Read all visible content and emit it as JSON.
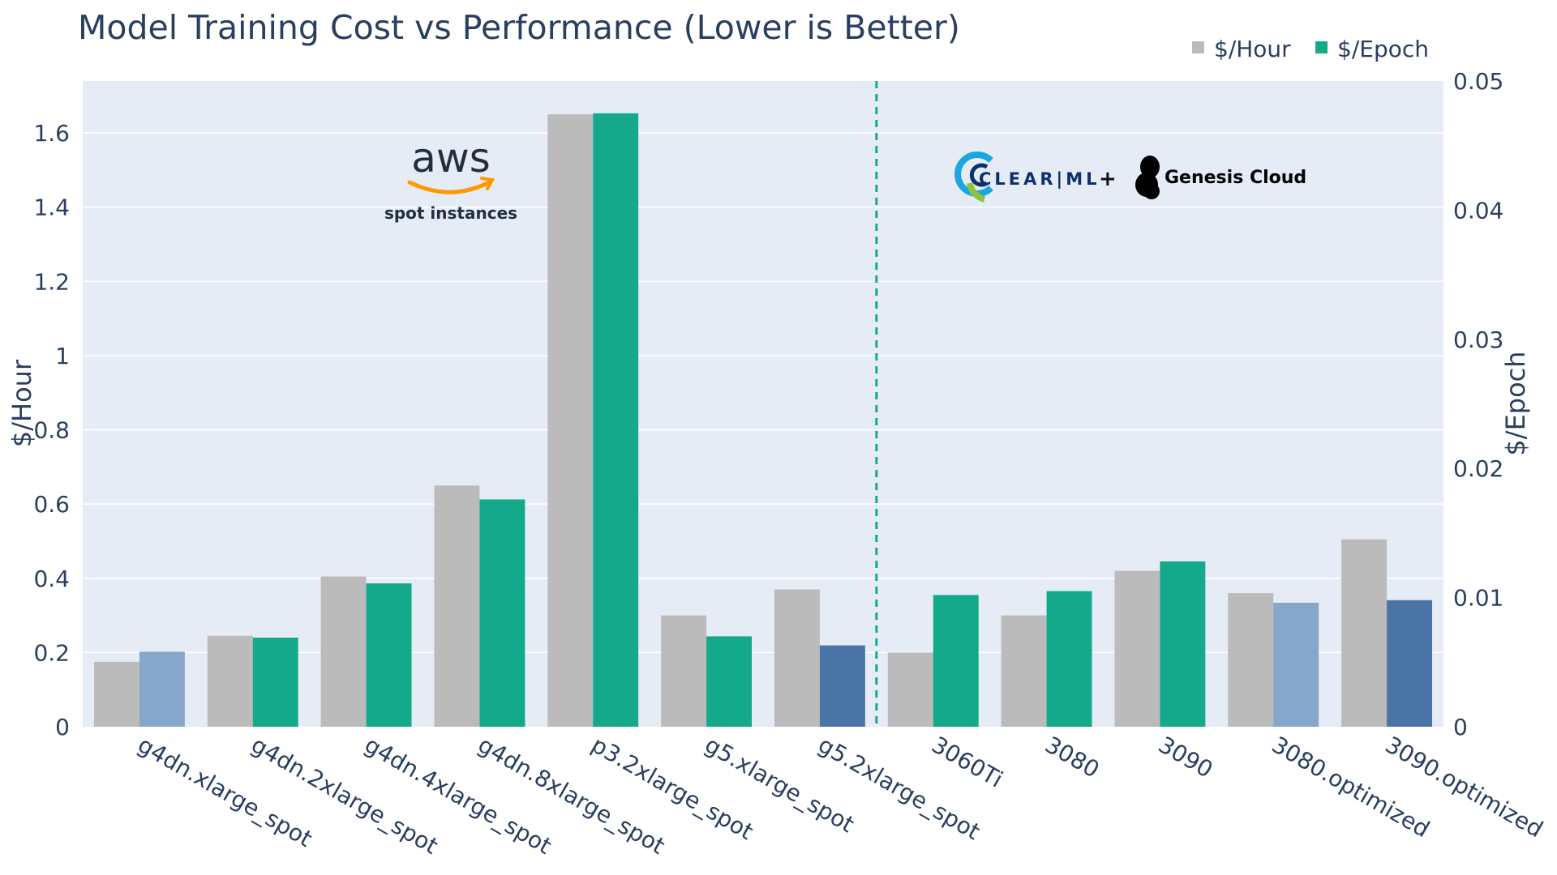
{
  "chart_data": {
    "type": "bar",
    "title": "Model Training Cost vs Performance (Lower is Better)",
    "categories": [
      "g4dn.xlarge_spot",
      "g4dn.2xlarge_spot",
      "g4dn.4xlarge_spot",
      "g4dn.8xlarge_spot",
      "p3.2xlarge_spot",
      "g5.xlarge_spot",
      "g5.2xlarge_spot",
      "3060Ti",
      "3080",
      "3090",
      "3080.optimized",
      "3090.optimized"
    ],
    "series": [
      {
        "name": "$/Hour",
        "axis": "left",
        "color": "#bbbbbb",
        "values": [
          0.175,
          0.245,
          0.405,
          0.65,
          1.65,
          0.3,
          0.37,
          0.2,
          0.3,
          0.42,
          0.36,
          0.505
        ]
      },
      {
        "name": "$/Epoch",
        "axis": "right",
        "color": "#13a98a",
        "values": [
          0.0058,
          0.0069,
          0.0111,
          0.0176,
          0.0475,
          0.007,
          0.0063,
          0.0102,
          0.0105,
          0.0128,
          0.0096,
          0.0098
        ],
        "bar_colors": [
          "#86a7c9",
          "#13a98a",
          "#13a98a",
          "#13a98a",
          "#13a98a",
          "#13a98a",
          "#4b74a6",
          "#13a98a",
          "#13a98a",
          "#13a98a",
          "#86a7c9",
          "#4b74a6"
        ]
      }
    ],
    "ylabel_left": "$/Hour",
    "ylabel_right": "$/Epoch",
    "ylim_left": [
      0,
      1.74
    ],
    "ylim_right": [
      0,
      0.05
    ],
    "yticks_left": [
      "0",
      "0.2",
      "0.4",
      "0.6",
      "0.8",
      "1",
      "1.2",
      "1.4",
      "1.6"
    ],
    "yticks_left_values": [
      0,
      0.2,
      0.4,
      0.6,
      0.8,
      1,
      1.2,
      1.4,
      1.6
    ],
    "yticks_right": [
      "0",
      "0.01",
      "0.02",
      "0.03",
      "0.04",
      "0.05"
    ],
    "yticks_right_values": [
      0,
      0.01,
      0.02,
      0.03,
      0.04,
      0.05
    ],
    "divider_after_index": 6,
    "grid": true,
    "legend_position": "top-right",
    "plot_background": "#e5ecf6",
    "annotations": {
      "aws_logo": "aws",
      "aws_caption": "spot instances",
      "clearml_logo": "CLEAR|ML",
      "plus": "+",
      "genesis_logo": "Genesis Cloud"
    }
  }
}
